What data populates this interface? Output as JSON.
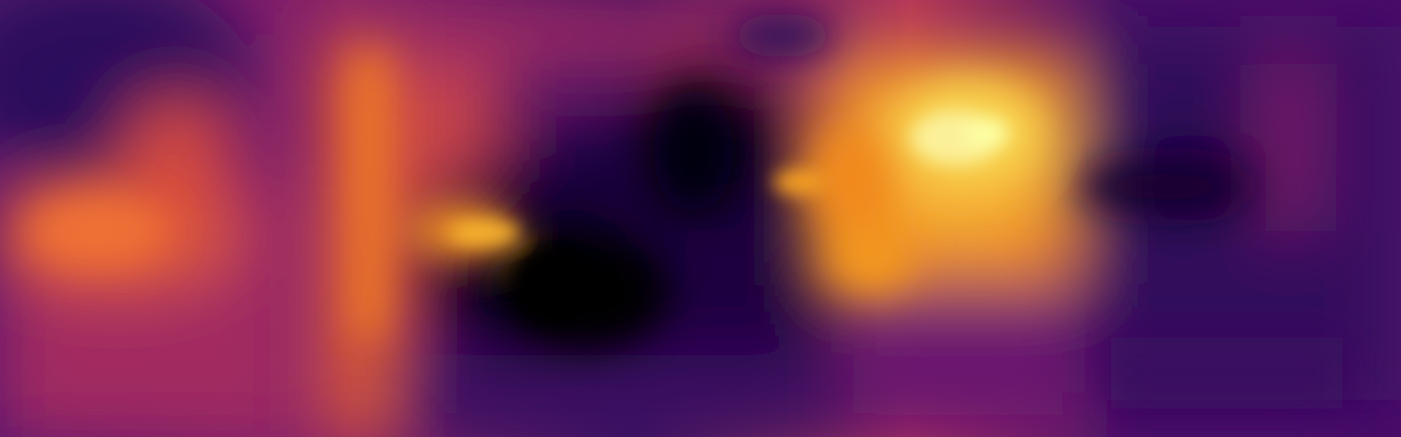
{
  "image": {
    "kind": "depth-estimation-heatmap",
    "colormap": "inferno",
    "palette": {
      "darkest": "#000004",
      "deep_purple": "#2a0a5e",
      "purple": "#56106e",
      "magenta": "#a52c60",
      "red_orange": "#e4502d",
      "orange": "#f98c0a",
      "yellow": "#f3d147",
      "lightest": "#fcffa4"
    }
  }
}
